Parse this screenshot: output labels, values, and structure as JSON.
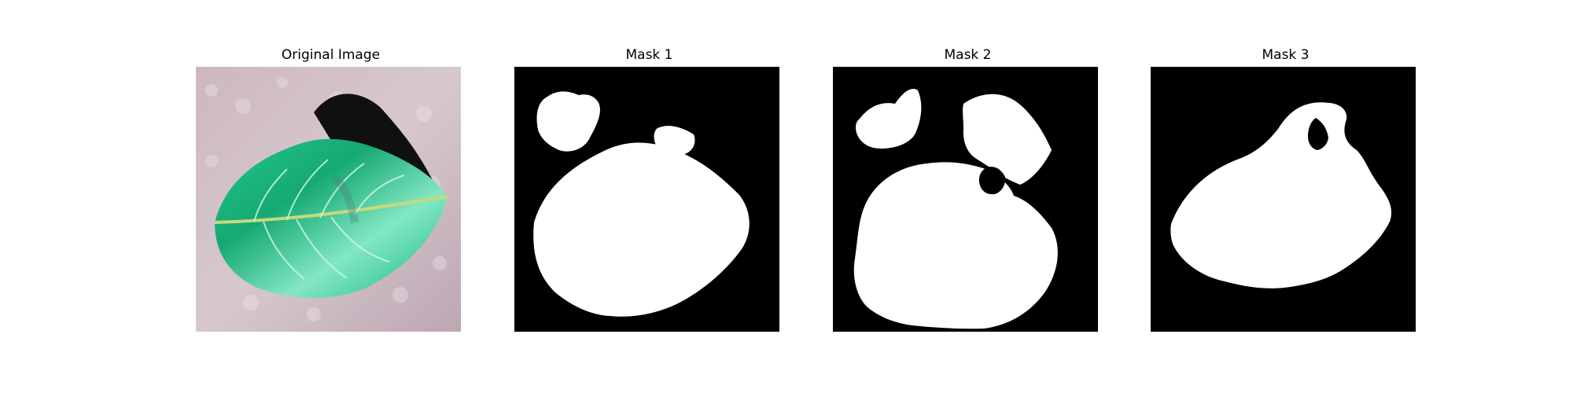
{
  "figure": {
    "panels": [
      {
        "title": "Original Image"
      },
      {
        "title": "Mask 1"
      },
      {
        "title": "Mask 2"
      },
      {
        "title": "Mask 3"
      }
    ]
  },
  "colors": {
    "background": "#ffffff",
    "mask_background": "#000000",
    "mask_foreground": "#ffffff",
    "surface": "#c8b3bb",
    "leaf_dark": "#0f8c64",
    "leaf_light": "#8ef0cc",
    "shadow": "#111111"
  }
}
